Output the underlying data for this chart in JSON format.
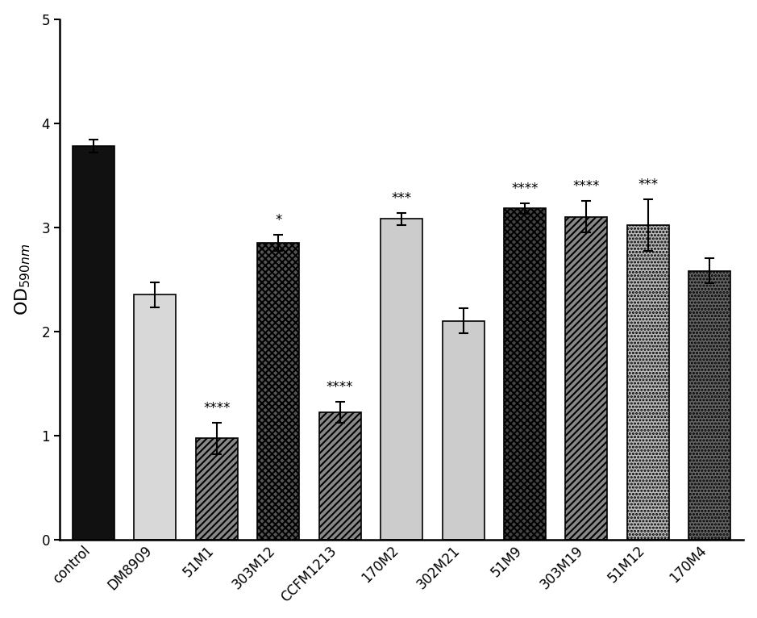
{
  "categories": [
    "control",
    "DM8909",
    "51M1",
    "303M12",
    "CCFM1213",
    "170M2",
    "302M21",
    "51M9",
    "303M19",
    "51M12",
    "170M4"
  ],
  "values": [
    3.78,
    2.35,
    0.97,
    2.85,
    1.22,
    3.08,
    2.1,
    3.18,
    3.1,
    3.02,
    2.58
  ],
  "errors": [
    0.06,
    0.12,
    0.15,
    0.08,
    0.1,
    0.06,
    0.12,
    0.05,
    0.15,
    0.25,
    0.12
  ],
  "significance": [
    "",
    "",
    "****",
    "*",
    "****",
    "***",
    "",
    "****",
    "****",
    "***",
    ""
  ],
  "ylabel": "OD$_{590nm}$",
  "ylim": [
    0,
    5
  ],
  "yticks": [
    0,
    1,
    2,
    3,
    4,
    5
  ],
  "sig_fontsize": 12,
  "tick_fontsize": 12,
  "label_fontsize": 16,
  "bar_width": 0.68,
  "bar_specs": [
    {
      "fc": "#111111",
      "hatch": "",
      "ec": "black",
      "lw": 1.2
    },
    {
      "fc": "#d8d8d8",
      "hatch": "",
      "ec": "black",
      "lw": 1.2
    },
    {
      "fc": "#888888",
      "hatch": "////",
      "ec": "black",
      "lw": 1.2
    },
    {
      "fc": "#555555",
      "hatch": "xxxx",
      "ec": "black",
      "lw": 1.2
    },
    {
      "fc": "#888888",
      "hatch": "////",
      "ec": "black",
      "lw": 1.2
    },
    {
      "fc": "#cccccc",
      "hatch": "====",
      "ec": "black",
      "lw": 1.2
    },
    {
      "fc": "#cccccc",
      "hatch": "",
      "ec": "black",
      "lw": 1.2
    },
    {
      "fc": "#444444",
      "hatch": "xxxx",
      "ec": "black",
      "lw": 1.2
    },
    {
      "fc": "#888888",
      "hatch": "////",
      "ec": "black",
      "lw": 1.2
    },
    {
      "fc": "#bbbbbb",
      "hatch": "....",
      "ec": "black",
      "lw": 1.2
    },
    {
      "fc": "#666666",
      "hatch": "....",
      "ec": "black",
      "lw": 1.2
    }
  ]
}
